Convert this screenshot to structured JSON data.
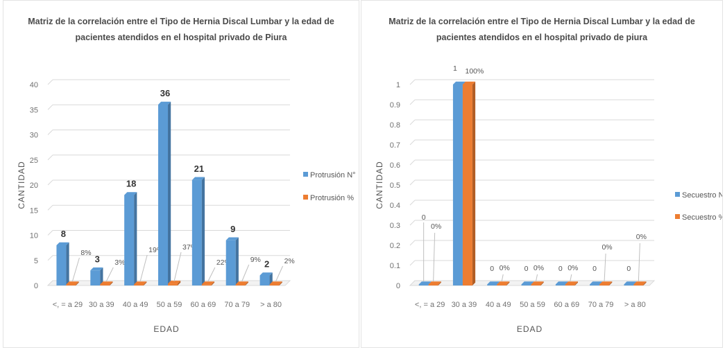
{
  "chart_data": [
    {
      "type": "bar",
      "title_lines": [
        "Matriz de la correlación entre el Tipo de Hernia Discal Lumbar y la edad de",
        "pacientes atendidos en el hospital privado de Piura"
      ],
      "xlabel": "EDAD",
      "ylabel": "CANTIDAD",
      "ylim": [
        0,
        40
      ],
      "yticks": [
        "0",
        "5",
        "10",
        "15",
        "20",
        "25",
        "30",
        "35",
        "40"
      ],
      "categories": [
        "<, = a 29",
        "30 a 39",
        "40 a 49",
        "50 a 59",
        "60 a 69",
        "70 a 79",
        "> a 80"
      ],
      "series": [
        {
          "name": "Protrusión N°",
          "color": "#5b9bd5",
          "values": [
            8,
            3,
            18,
            36,
            21,
            9,
            2
          ],
          "labels": [
            "8",
            "3",
            "18",
            "36",
            "21",
            "9",
            "2"
          ]
        },
        {
          "name": "Protrusión %",
          "color": "#ed7d31",
          "values": [
            0.08,
            0.03,
            0.19,
            0.37,
            0.22,
            0.09,
            0.02
          ],
          "labels": [
            "8%",
            "3%",
            "19%",
            "37%",
            "22%",
            "9%",
            "2%"
          ]
        }
      ],
      "grid": true,
      "legend": "right"
    },
    {
      "type": "bar",
      "title_lines": [
        "Matriz de la correlación entre el Tipo de Hernia Discal Lumbar y la edad de",
        "pacientes atendidos en el hospital privado de piura"
      ],
      "xlabel": "EDAD",
      "ylabel": "CANTIDAD",
      "ylim": [
        0,
        1
      ],
      "yticks": [
        "0",
        "0.1",
        "0.2",
        "0.3",
        "0.4",
        "0.5",
        "0.6",
        "0.7",
        "0.8",
        "0.9",
        "1"
      ],
      "categories": [
        "<, = a 29",
        "30 a 39",
        "40 a 49",
        "50 a 59",
        "60 a 69",
        "70 a 79",
        "> a 80"
      ],
      "series": [
        {
          "name": "Secuestro N°",
          "color": "#5b9bd5",
          "values": [
            0,
            1,
            0,
            0,
            0,
            0,
            0
          ],
          "labels": [
            "0",
            "1",
            "0",
            "0",
            "0",
            "0",
            "0"
          ]
        },
        {
          "name": "Secuestro %",
          "color": "#ed7d31",
          "values": [
            0,
            1,
            0,
            0,
            0,
            0,
            0
          ],
          "labels": [
            "0%",
            "100%",
            "0%",
            "0%",
            "0%",
            "0%",
            "0%"
          ]
        }
      ],
      "grid": true,
      "legend": "right"
    }
  ]
}
